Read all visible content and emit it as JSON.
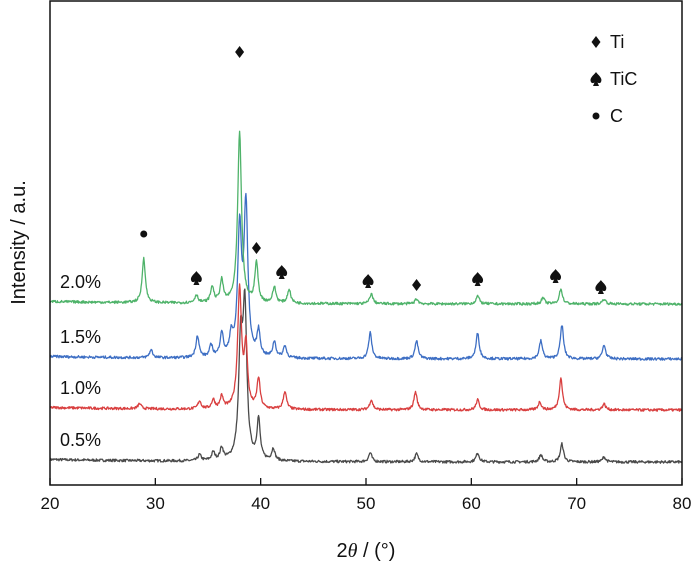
{
  "chart_data": {
    "type": "line",
    "title": "",
    "xlabel": {
      "prefix": "2",
      "italic": "θ",
      "suffix": " / (°)"
    },
    "ylabel": "Intensity / a.u.",
    "xlim": [
      20,
      80
    ],
    "xticks": [
      "20",
      "30",
      "40",
      "50",
      "60",
      "70",
      "80"
    ],
    "yticks_shown": false,
    "legend": {
      "position": "top-right",
      "entries": [
        {
          "symbol": "diamond",
          "label": "Ti"
        },
        {
          "symbol": "spade",
          "label": "TiC"
        },
        {
          "symbol": "circle",
          "label": "C"
        }
      ]
    },
    "series": [
      {
        "name": "0.5%",
        "color": "#4a4a4a",
        "baseline": 0,
        "peaks": [
          [
            34.2,
            6
          ],
          [
            35.5,
            8
          ],
          [
            36.3,
            12
          ],
          [
            38.1,
            110
          ],
          [
            38.5,
            145
          ],
          [
            39.8,
            40
          ],
          [
            41.2,
            12
          ],
          [
            50.4,
            9
          ],
          [
            54.8,
            8
          ],
          [
            60.6,
            9
          ],
          [
            66.6,
            7
          ],
          [
            68.6,
            18
          ],
          [
            72.6,
            5
          ]
        ]
      },
      {
        "name": "1.0%",
        "color": "#d94040",
        "baseline": 52,
        "peaks": [
          [
            28.5,
            5
          ],
          [
            34.2,
            8
          ],
          [
            35.5,
            9
          ],
          [
            36.3,
            12
          ],
          [
            38.0,
            120
          ],
          [
            38.6,
            60
          ],
          [
            39.8,
            30
          ],
          [
            42.3,
            18
          ],
          [
            50.5,
            10
          ],
          [
            54.7,
            18
          ],
          [
            60.6,
            10
          ],
          [
            66.5,
            8
          ],
          [
            68.5,
            32
          ],
          [
            72.6,
            6
          ]
        ]
      },
      {
        "name": "1.5%",
        "color": "#3e6fc4",
        "baseline": 103,
        "peaks": [
          [
            29.6,
            8
          ],
          [
            34.0,
            22
          ],
          [
            35.3,
            12
          ],
          [
            36.3,
            24
          ],
          [
            37.2,
            20
          ],
          [
            38.0,
            125
          ],
          [
            38.6,
            150
          ],
          [
            39.8,
            25
          ],
          [
            41.3,
            16
          ],
          [
            42.3,
            12
          ],
          [
            50.4,
            26
          ],
          [
            54.8,
            18
          ],
          [
            60.6,
            26
          ],
          [
            66.6,
            18
          ],
          [
            68.6,
            34
          ],
          [
            72.6,
            14
          ]
        ]
      },
      {
        "name": "2.0%",
        "color": "#4fb36a",
        "baseline": 158,
        "peaks": [
          [
            28.9,
            45
          ],
          [
            33.9,
            8
          ],
          [
            35.4,
            16
          ],
          [
            36.3,
            22
          ],
          [
            38.0,
            170
          ],
          [
            39.6,
            40
          ],
          [
            41.3,
            16
          ],
          [
            42.7,
            14
          ],
          [
            50.5,
            10
          ],
          [
            54.8,
            5
          ],
          [
            60.6,
            8
          ],
          [
            66.8,
            6
          ],
          [
            68.5,
            15
          ],
          [
            72.6,
            5
          ]
        ]
      }
    ],
    "annotations": [
      {
        "symbol": "circle",
        "x": 28.9
      },
      {
        "symbol": "spade",
        "x": 33.9
      },
      {
        "symbol": "diamond",
        "x": 38.0
      },
      {
        "symbol": "diamond",
        "x": 39.6
      },
      {
        "symbol": "spade",
        "x": 42.0
      },
      {
        "symbol": "spade",
        "x": 50.2
      },
      {
        "symbol": "diamond",
        "x": 54.8
      },
      {
        "symbol": "spade",
        "x": 60.6
      },
      {
        "symbol": "spade",
        "x": 68.0
      },
      {
        "symbol": "spade",
        "x": 72.3
      }
    ]
  }
}
